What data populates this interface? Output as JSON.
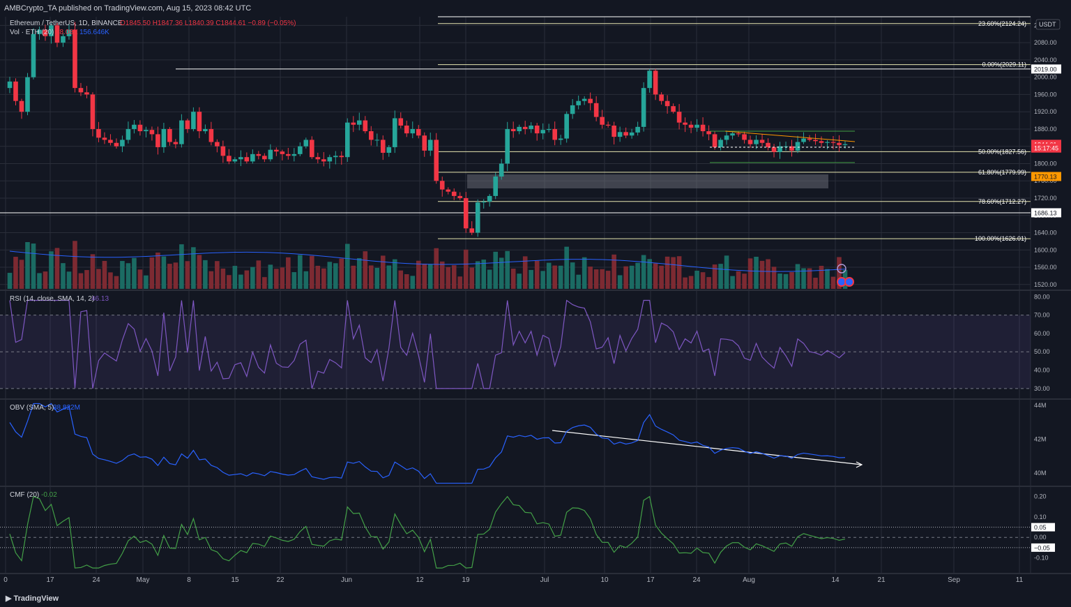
{
  "header": {
    "published": "AMBCrypto_TA published on TradingView.com, Aug 15, 2023 08:42 UTC"
  },
  "legend": {
    "symbol": "Ethereum / TetherUS, 1D, BINANCE",
    "ohlc": "O1845.50 H1847.36 L1840.39 C1844.61 −0.89 (−0.05%)",
    "vol_label": "Vol · ETH (20)",
    "vol_value": "48.08K",
    "vol_ma": "156.646K",
    "rsi_label": "RSI (14, close, SMA, 14, 2)",
    "rsi_value": "46.13",
    "obv_label": "OBV (SMA, 5)",
    "obv_value": "38.822M",
    "cmf_label": "CMF (20)",
    "cmf_value": "-0.02"
  },
  "currency": "USDT",
  "price_axis": [
    "2120.00",
    "2080.00",
    "2040.00",
    "2000.00",
    "1960.00",
    "1920.00",
    "1880.00",
    "1840.00",
    "1800.00",
    "1760.00",
    "1720.00",
    "1680.00",
    "1640.00",
    "1600.00",
    "1560.00",
    "1520.00"
  ],
  "rsi_axis": [
    "80.00",
    "70.00",
    "60.00",
    "50.00",
    "40.00",
    "30.00"
  ],
  "obv_axis": [
    "44M",
    "42M",
    "40M"
  ],
  "cmf_axis": [
    "0.20",
    "0.10",
    "0.00",
    "-0.10"
  ],
  "date_axis": [
    "0",
    "17",
    "24",
    "May",
    "8",
    "15",
    "22",
    "Jun",
    "12",
    "19",
    "Jul",
    "10",
    "17",
    "24",
    "Aug",
    "14",
    "21",
    "Sep",
    "11"
  ],
  "fib_levels": [
    {
      "label": "23.60%(2124.24)",
      "price": 2124.24
    },
    {
      "label": "0.00%(2029.11)",
      "price": 2029.11
    },
    {
      "label": "50.00%(1827.56)",
      "price": 1827.56
    },
    {
      "label": "61.80%(1779.99)",
      "price": 1779.99
    },
    {
      "label": "78.60%(1712.27)",
      "price": 1712.27
    },
    {
      "label": "100.00%(1626.01)",
      "price": 1626.01
    }
  ],
  "price_tags": [
    {
      "text": "2019.00",
      "price": 2019.0,
      "color": "#ffffff",
      "textColor": "#131722"
    },
    {
      "text": "1844.61",
      "price": 1844.61,
      "color": "#f23645",
      "textColor": "#ffffff"
    },
    {
      "text": "15:17:45",
      "price": 1836.0,
      "color": "#f23645",
      "textColor": "#ffffff"
    },
    {
      "text": "1770.13",
      "price": 1770.13,
      "color": "#ff9800",
      "textColor": "#131722"
    },
    {
      "text": "1686.13",
      "price": 1686.13,
      "color": "#ffffff",
      "textColor": "#131722"
    }
  ],
  "cmf_tags": [
    {
      "text": "0.05",
      "value": 0.05
    },
    {
      "text": "−0.05",
      "value": -0.05
    }
  ],
  "footer": {
    "brand": "TradingView"
  },
  "colors": {
    "up": "#26a69a",
    "down": "#f23645",
    "volUp": "#1b6b63",
    "volDown": "#7d2a32",
    "rsi": "#7e57c2",
    "obv": "#2962ff",
    "cmf": "#43a047",
    "bg": "#131722",
    "grid": "#2a2e39"
  },
  "chart_data": {
    "type": "candlestick",
    "symbol": "Ethereum / TetherUS",
    "interval": "1D",
    "ylim": [
      1510,
      2140
    ],
    "closes": [
      1990,
      1945,
      1920,
      2000,
      2100,
      2110,
      2095,
      2120,
      2080,
      2095,
      2110,
      1975,
      1965,
      1960,
      1880,
      1860,
      1855,
      1848,
      1840,
      1855,
      1880,
      1890,
      1875,
      1878,
      1868,
      1838,
      1880,
      1850,
      1845,
      1900,
      1880,
      1920,
      1875,
      1880,
      1850,
      1840,
      1818,
      1805,
      1810,
      1815,
      1805,
      1822,
      1818,
      1810,
      1832,
      1828,
      1822,
      1818,
      1822,
      1840,
      1855,
      1815,
      1810,
      1805,
      1815,
      1818,
      1815,
      1895,
      1890,
      1900,
      1875,
      1855,
      1855,
      1825,
      1838,
      1905,
      1888,
      1870,
      1880,
      1865,
      1830,
      1855,
      1760,
      1740,
      1735,
      1725,
      1720,
      1650,
      1640,
      1710,
      1712,
      1725,
      1770,
      1800,
      1880,
      1875,
      1885,
      1880,
      1888,
      1870,
      1878,
      1880,
      1855,
      1858,
      1915,
      1935,
      1945,
      1950,
      1940,
      1908,
      1890,
      1888,
      1862,
      1873,
      1865,
      1872,
      1885,
      1975,
      2015,
      1960,
      1945,
      1933,
      1920,
      1895,
      1890,
      1883,
      1890,
      1875,
      1868,
      1838,
      1855,
      1865,
      1870,
      1868,
      1855,
      1845,
      1855,
      1848,
      1838,
      1827,
      1840,
      1840,
      1830,
      1850,
      1858,
      1855,
      1852,
      1848,
      1850,
      1848,
      1843,
      1845
    ],
    "price_range": [
      1510,
      2140
    ],
    "rsi_range": [
      25,
      82
    ],
    "obv_range": [
      39.3,
      44.2
    ],
    "cmf_range": [
      -0.17,
      0.24
    ]
  }
}
